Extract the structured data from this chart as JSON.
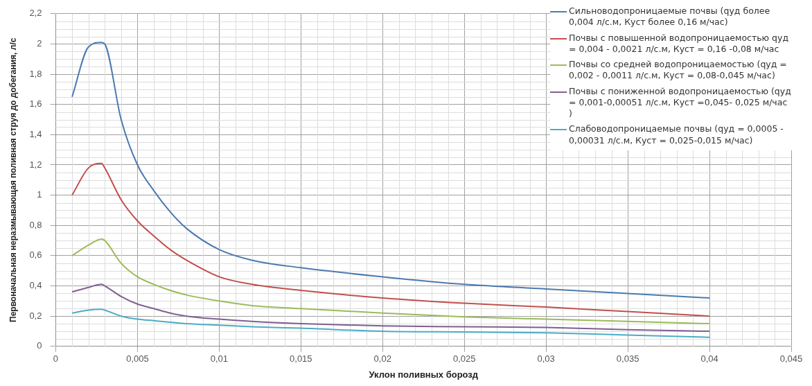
{
  "chart_data": {
    "type": "line",
    "xlabel": "Уклон поливных борозд",
    "ylabel": "Первоначальная неразмывающая поливная струя до добегания, л/с",
    "x": [
      0.001,
      0.002,
      0.0028,
      0.003,
      0.004,
      0.005,
      0.006,
      0.007,
      0.008,
      0.01,
      0.012,
      0.015,
      0.02,
      0.025,
      0.03,
      0.035,
      0.04
    ],
    "series": [
      {
        "name": "Сильноводопроницаемые почвы (qуд более  0,004 л/с.м,  Куст более 0,16 м/час)",
        "color": "#4a7ab0",
        "values": [
          1.65,
          1.98,
          2.01,
          2.0,
          1.5,
          1.2,
          1.03,
          0.89,
          0.78,
          0.64,
          0.57,
          0.52,
          0.46,
          0.41,
          0.38,
          0.35,
          0.32
        ]
      },
      {
        "name": "Почвы с повышенной водопроницаемостью qуд = 0,004 - 0,0021 л/с.м,  Куст = 0,16 -0,08 м/час",
        "color": "#c0504d",
        "values": [
          1.0,
          1.18,
          1.21,
          1.18,
          0.97,
          0.83,
          0.73,
          0.64,
          0.57,
          0.46,
          0.41,
          0.37,
          0.32,
          0.285,
          0.26,
          0.23,
          0.2
        ]
      },
      {
        "name": "Почвы со средней водопроницаемостью (qуд = 0,002 - 0,0011 л/с.м, Куст = 0,08-0,045 м/час)",
        "color": "#9bbb59",
        "values": [
          0.6,
          0.67,
          0.71,
          0.7,
          0.55,
          0.46,
          0.41,
          0.37,
          0.34,
          0.3,
          0.27,
          0.25,
          0.22,
          0.195,
          0.18,
          0.165,
          0.15
        ]
      },
      {
        "name": "Почвы с пониженной водопроницаемостью (qуд = 0,001-0,00051 л/с.м, Куст =0,045- 0,025 м/час )",
        "color": "#7f5f8f",
        "values": [
          0.36,
          0.39,
          0.41,
          0.4,
          0.33,
          0.28,
          0.25,
          0.22,
          0.2,
          0.18,
          0.165,
          0.15,
          0.135,
          0.13,
          0.125,
          0.11,
          0.1
        ]
      },
      {
        "name": "Слабоводопроницаемые почвы (qуд = 0,0005 - 0,00031 л/с.м, Куст = 0,025-0,015 м/час)",
        "color": "#4bacc6",
        "values": [
          0.22,
          0.24,
          0.245,
          0.24,
          0.2,
          0.18,
          0.17,
          0.16,
          0.15,
          0.14,
          0.13,
          0.12,
          0.1,
          0.095,
          0.09,
          0.075,
          0.06
        ]
      }
    ],
    "xlim": [
      0,
      0.045
    ],
    "xticks": [
      0,
      {
        "value": 0.005,
        "label": "0,005"
      },
      {
        "value": 0.01,
        "label": "0,01"
      },
      {
        "value": 0.015,
        "label": "0,015"
      },
      {
        "value": 0.02,
        "label": "0,02"
      },
      {
        "value": 0.025,
        "label": "0,025"
      },
      {
        "value": 0.03,
        "label": "0,03"
      },
      {
        "value": 0.035,
        "label": "0,035"
      },
      {
        "value": 0.04,
        "label": "0,04"
      },
      {
        "value": 0.045,
        "label": "0,045"
      }
    ],
    "ylim": [
      0,
      2.2
    ],
    "yticks": [
      0,
      {
        "value": 0.2,
        "label": "0,2"
      },
      {
        "value": 0.4,
        "label": "0,4"
      },
      {
        "value": 0.6,
        "label": "0,6"
      },
      {
        "value": 0.8,
        "label": "0,8"
      },
      1,
      {
        "value": 1.2,
        "label": "1,2"
      },
      {
        "value": 1.4,
        "label": "1,4"
      },
      {
        "value": 1.6,
        "label": "1,6"
      },
      {
        "value": 1.8,
        "label": "1,8"
      },
      2,
      {
        "value": 2.2,
        "label": "2,2"
      }
    ],
    "grid": true,
    "legend": "top right",
    "marker": "none",
    "line_style": "solid"
  }
}
